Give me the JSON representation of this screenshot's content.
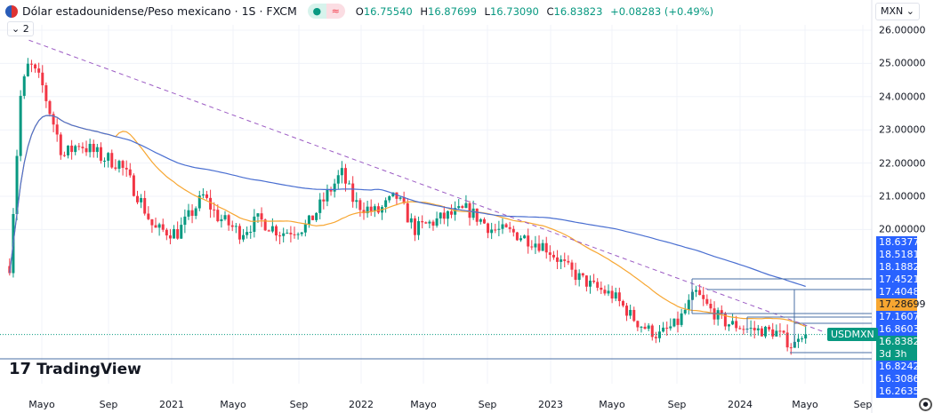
{
  "header": {
    "title": "Dólar estadounidense/Peso mexicano · 1S · FXCM",
    "open_label": "O",
    "open": "16.75540",
    "high_label": "H",
    "high": "16.87699",
    "low_label": "L",
    "low": "16.73090",
    "close_label": "C",
    "close": "16.83823",
    "change": "+0.08283 (+0.49%)",
    "status_dot": "●",
    "approx_icon": "≈",
    "collapse_label": "⌄ 2"
  },
  "currency_select": {
    "value": "MXN ⌄"
  },
  "logo": {
    "text": "TradingView",
    "mark": "17"
  },
  "symbol_tag": "USDMXN",
  "price_axis": [
    "26.00000",
    "25.00000",
    "24.00000",
    "23.00000",
    "22.00000",
    "21.00000",
    "20.00000"
  ],
  "price_tags": [
    {
      "value": "18.63776",
      "color": "#2962ff"
    },
    {
      "value": "18.51811",
      "color": "#2962ff"
    },
    {
      "value": "18.18820",
      "color": "#2962ff"
    },
    {
      "value": "17.45215",
      "color": "#2962ff"
    },
    {
      "value": "17.40480",
      "color": "#2962ff"
    },
    {
      "value": "17.28699",
      "color": "#f7a631"
    },
    {
      "value": "17.16078",
      "color": "#2962ff"
    },
    {
      "value": "16.86030",
      "color": "#2962ff"
    },
    {
      "value": "16.83823",
      "color": "#089981",
      "sub": "3d 3h"
    },
    {
      "value": "16.82427",
      "color": "#2962ff"
    },
    {
      "value": "16.30861",
      "color": "#2962ff"
    },
    {
      "value": "16.26353",
      "color": "#2962ff"
    }
  ],
  "time_axis": [
    "Mayo",
    "Sep",
    "2021",
    "Mayo",
    "Sep",
    "2022",
    "Mayo",
    "Sep",
    "2023",
    "Mayo",
    "Sep",
    "2024",
    "Mayo",
    "Sep"
  ],
  "chart_data": {
    "type": "candlestick",
    "symbol": "USDMXN",
    "interval": "1W",
    "ylim": [
      16.2,
      26.3
    ],
    "colors": {
      "up": "#089981",
      "down": "#f23645",
      "ma_fast": "#f7a631",
      "ma_slow": "#4a6fd1",
      "trendline": "#9c5cc4"
    },
    "approx_closes": [
      [
        "2020-02-28",
        18.9
      ],
      [
        "2020-03-20",
        24.0
      ],
      [
        "2020-04-05",
        25.0
      ],
      [
        "2020-05-01",
        24.3
      ],
      [
        "2020-06-10",
        22.2
      ],
      [
        "2020-07-10",
        22.6
      ],
      [
        "2020-08-20",
        22.2
      ],
      [
        "2020-09-25",
        22.0
      ],
      [
        "2020-11-01",
        21.0
      ],
      [
        "2020-12-01",
        20.0
      ],
      [
        "2021-01-15",
        19.9
      ],
      [
        "2021-03-05",
        21.0
      ],
      [
        "2021-04-01",
        20.4
      ],
      [
        "2021-05-15",
        19.9
      ],
      [
        "2021-06-20",
        20.3
      ],
      [
        "2021-08-01",
        19.9
      ],
      [
        "2021-09-20",
        20.1
      ],
      [
        "2021-11-25",
        21.7
      ],
      [
        "2021-12-20",
        20.8
      ],
      [
        "2022-02-01",
        20.5
      ],
      [
        "2022-03-10",
        21.0
      ],
      [
        "2022-04-15",
        20.0
      ],
      [
        "2022-06-15",
        20.4
      ],
      [
        "2022-07-25",
        20.6
      ],
      [
        "2022-09-10",
        20.0
      ],
      [
        "2022-10-20",
        19.9
      ],
      [
        "2022-12-20",
        19.5
      ],
      [
        "2023-02-10",
        18.7
      ],
      [
        "2023-03-20",
        18.3
      ],
      [
        "2023-05-01",
        18.0
      ],
      [
        "2023-06-15",
        17.2
      ],
      [
        "2023-07-25",
        16.8
      ],
      [
        "2023-09-01",
        17.2
      ],
      [
        "2023-10-05",
        18.1
      ],
      [
        "2023-11-01",
        17.6
      ],
      [
        "2023-12-01",
        17.2
      ],
      [
        "2024-01-15",
        17.0
      ],
      [
        "2024-03-10",
        16.9
      ],
      [
        "2024-04-10",
        16.45
      ],
      [
        "2024-04-20",
        16.9
      ],
      [
        "2024-05-05",
        16.84
      ]
    ],
    "trendline": [
      [
        "2020-04-05",
        25.7
      ],
      [
        "2024-06-10",
        16.9
      ]
    ],
    "horizontal_levels": [
      17.4048,
      17.16078,
      16.8603,
      16.83823,
      16.30861,
      16.26353
    ]
  }
}
